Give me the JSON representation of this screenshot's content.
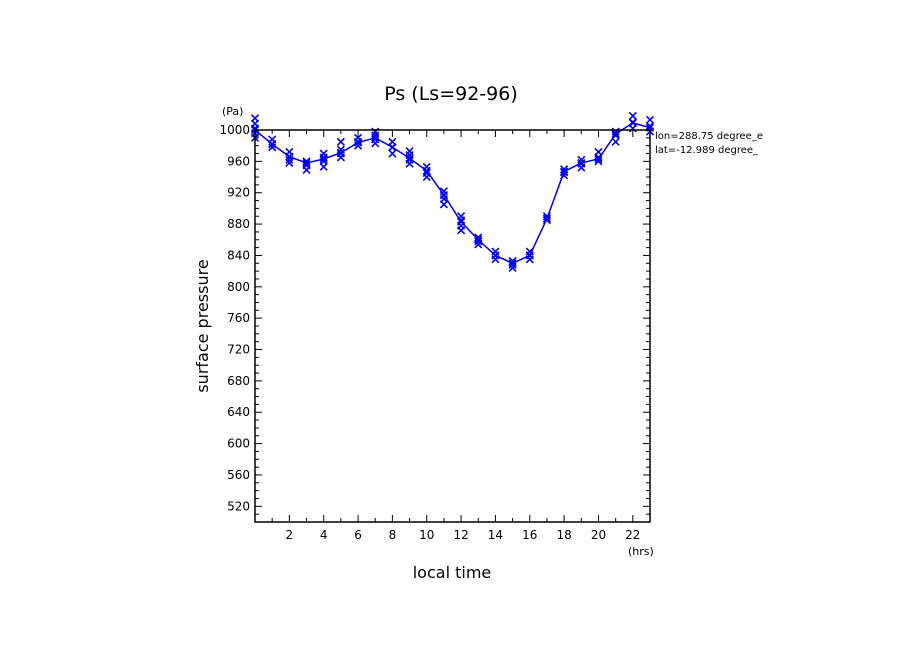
{
  "chart_data": {
    "type": "scatter",
    "title": "Ps (Ls=92-96)",
    "xlabel": "local time",
    "ylabel": "surface pressure",
    "x_unit": "(hrs)",
    "y_unit": "(Pa)",
    "xlim": [
      0,
      23
    ],
    "ylim": [
      500,
      1000
    ],
    "x_ticks": [
      2,
      4,
      6,
      8,
      10,
      12,
      14,
      16,
      18,
      20,
      22
    ],
    "y_ticks": [
      520,
      560,
      600,
      640,
      680,
      720,
      760,
      800,
      840,
      880,
      920,
      960,
      1000
    ],
    "annotations": [
      "lon=288.75 degree_e",
      "lat=-12.989 degree_"
    ],
    "series": [
      {
        "line": true,
        "x": [
          0,
          1,
          2,
          3,
          4,
          5,
          6,
          7,
          8,
          9,
          10,
          11,
          12,
          13,
          14,
          15,
          16,
          17,
          18,
          19,
          20,
          21,
          22,
          23
        ],
        "y": [
          1000,
          982,
          966,
          958,
          963,
          971,
          984,
          990,
          978,
          964,
          948,
          917,
          883,
          860,
          840,
          830,
          840,
          887,
          947,
          958,
          963,
          995,
          1009,
          1003
        ]
      },
      {
        "line": false,
        "x": [
          0,
          0,
          0,
          0,
          0,
          1,
          1,
          1,
          2,
          2,
          2,
          2,
          3,
          3,
          3,
          4,
          4,
          4,
          4,
          5,
          5,
          5,
          5,
          6,
          6,
          6,
          7,
          7,
          7,
          7,
          8,
          8,
          8,
          9,
          9,
          9,
          9,
          10,
          10,
          10,
          11,
          11,
          11,
          11,
          12,
          12,
          12,
          12,
          13,
          13,
          13,
          14,
          14,
          14,
          15,
          15,
          15,
          16,
          16,
          16,
          17,
          17,
          18,
          18,
          18,
          19,
          19,
          19,
          20,
          20,
          20,
          21,
          21,
          21,
          22,
          22,
          22,
          23,
          23,
          23
        ],
        "y": [
          1015,
          1008,
          1002,
          996,
          990,
          988,
          982,
          978,
          972,
          966,
          962,
          958,
          960,
          955,
          949,
          970,
          965,
          960,
          953,
          985,
          975,
          970,
          965,
          990,
          985,
          980,
          998,
          993,
          988,
          983,
          985,
          978,
          970,
          973,
          968,
          962,
          957,
          953,
          945,
          940,
          922,
          917,
          912,
          905,
          890,
          885,
          878,
          872,
          863,
          858,
          854,
          845,
          840,
          835,
          833,
          828,
          824,
          845,
          840,
          835,
          890,
          885,
          950,
          946,
          942,
          962,
          957,
          952,
          972,
          965,
          960,
          998,
          993,
          985,
          1018,
          1010,
          1002,
          1013,
          1005,
          998
        ]
      }
    ]
  }
}
